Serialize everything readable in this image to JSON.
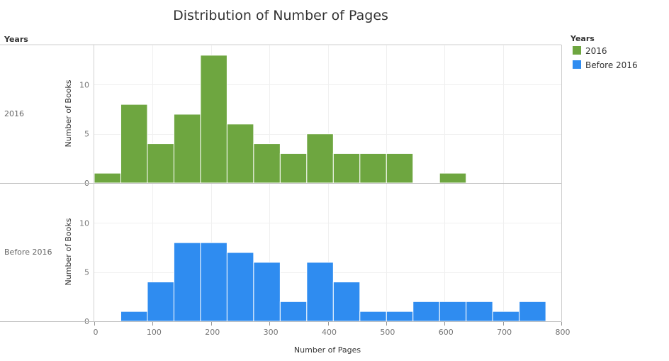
{
  "chart_data": {
    "type": "bar",
    "title": "Distribution of Number of Pages",
    "row_header": "Years",
    "xlabel": "Number of Pages",
    "ylabel": "Number of Books",
    "xlim": [
      0,
      800
    ],
    "xticks": [
      0,
      100,
      200,
      300,
      400,
      500,
      600,
      700,
      800
    ],
    "ylim": [
      0,
      14
    ],
    "yticks": [
      0,
      5,
      10
    ],
    "bin_width": 45.5,
    "grid": true,
    "legend": {
      "title": "Years",
      "position": "right"
    },
    "series": [
      {
        "name": "2016",
        "color": "#6ea640",
        "bins": [
          {
            "start": 0,
            "value": 1
          },
          {
            "start": 45.5,
            "value": 8
          },
          {
            "start": 91,
            "value": 4
          },
          {
            "start": 136.5,
            "value": 7
          },
          {
            "start": 182,
            "value": 13
          },
          {
            "start": 227.5,
            "value": 6
          },
          {
            "start": 273,
            "value": 4
          },
          {
            "start": 318.5,
            "value": 3
          },
          {
            "start": 364,
            "value": 5
          },
          {
            "start": 409.5,
            "value": 3
          },
          {
            "start": 455,
            "value": 3
          },
          {
            "start": 500.5,
            "value": 3
          },
          {
            "start": 591.5,
            "value": 1
          }
        ]
      },
      {
        "name": "Before 2016",
        "color": "#2f8cf0",
        "bins": [
          {
            "start": 45.5,
            "value": 1
          },
          {
            "start": 91,
            "value": 4
          },
          {
            "start": 136.5,
            "value": 8
          },
          {
            "start": 182,
            "value": 8
          },
          {
            "start": 227.5,
            "value": 7
          },
          {
            "start": 273,
            "value": 6
          },
          {
            "start": 318.5,
            "value": 2
          },
          {
            "start": 364,
            "value": 6
          },
          {
            "start": 409.5,
            "value": 4
          },
          {
            "start": 455,
            "value": 1
          },
          {
            "start": 500.5,
            "value": 1
          },
          {
            "start": 546,
            "value": 2
          },
          {
            "start": 591.5,
            "value": 2
          },
          {
            "start": 637,
            "value": 2
          },
          {
            "start": 682.5,
            "value": 1
          },
          {
            "start": 728,
            "value": 2
          }
        ]
      }
    ]
  }
}
